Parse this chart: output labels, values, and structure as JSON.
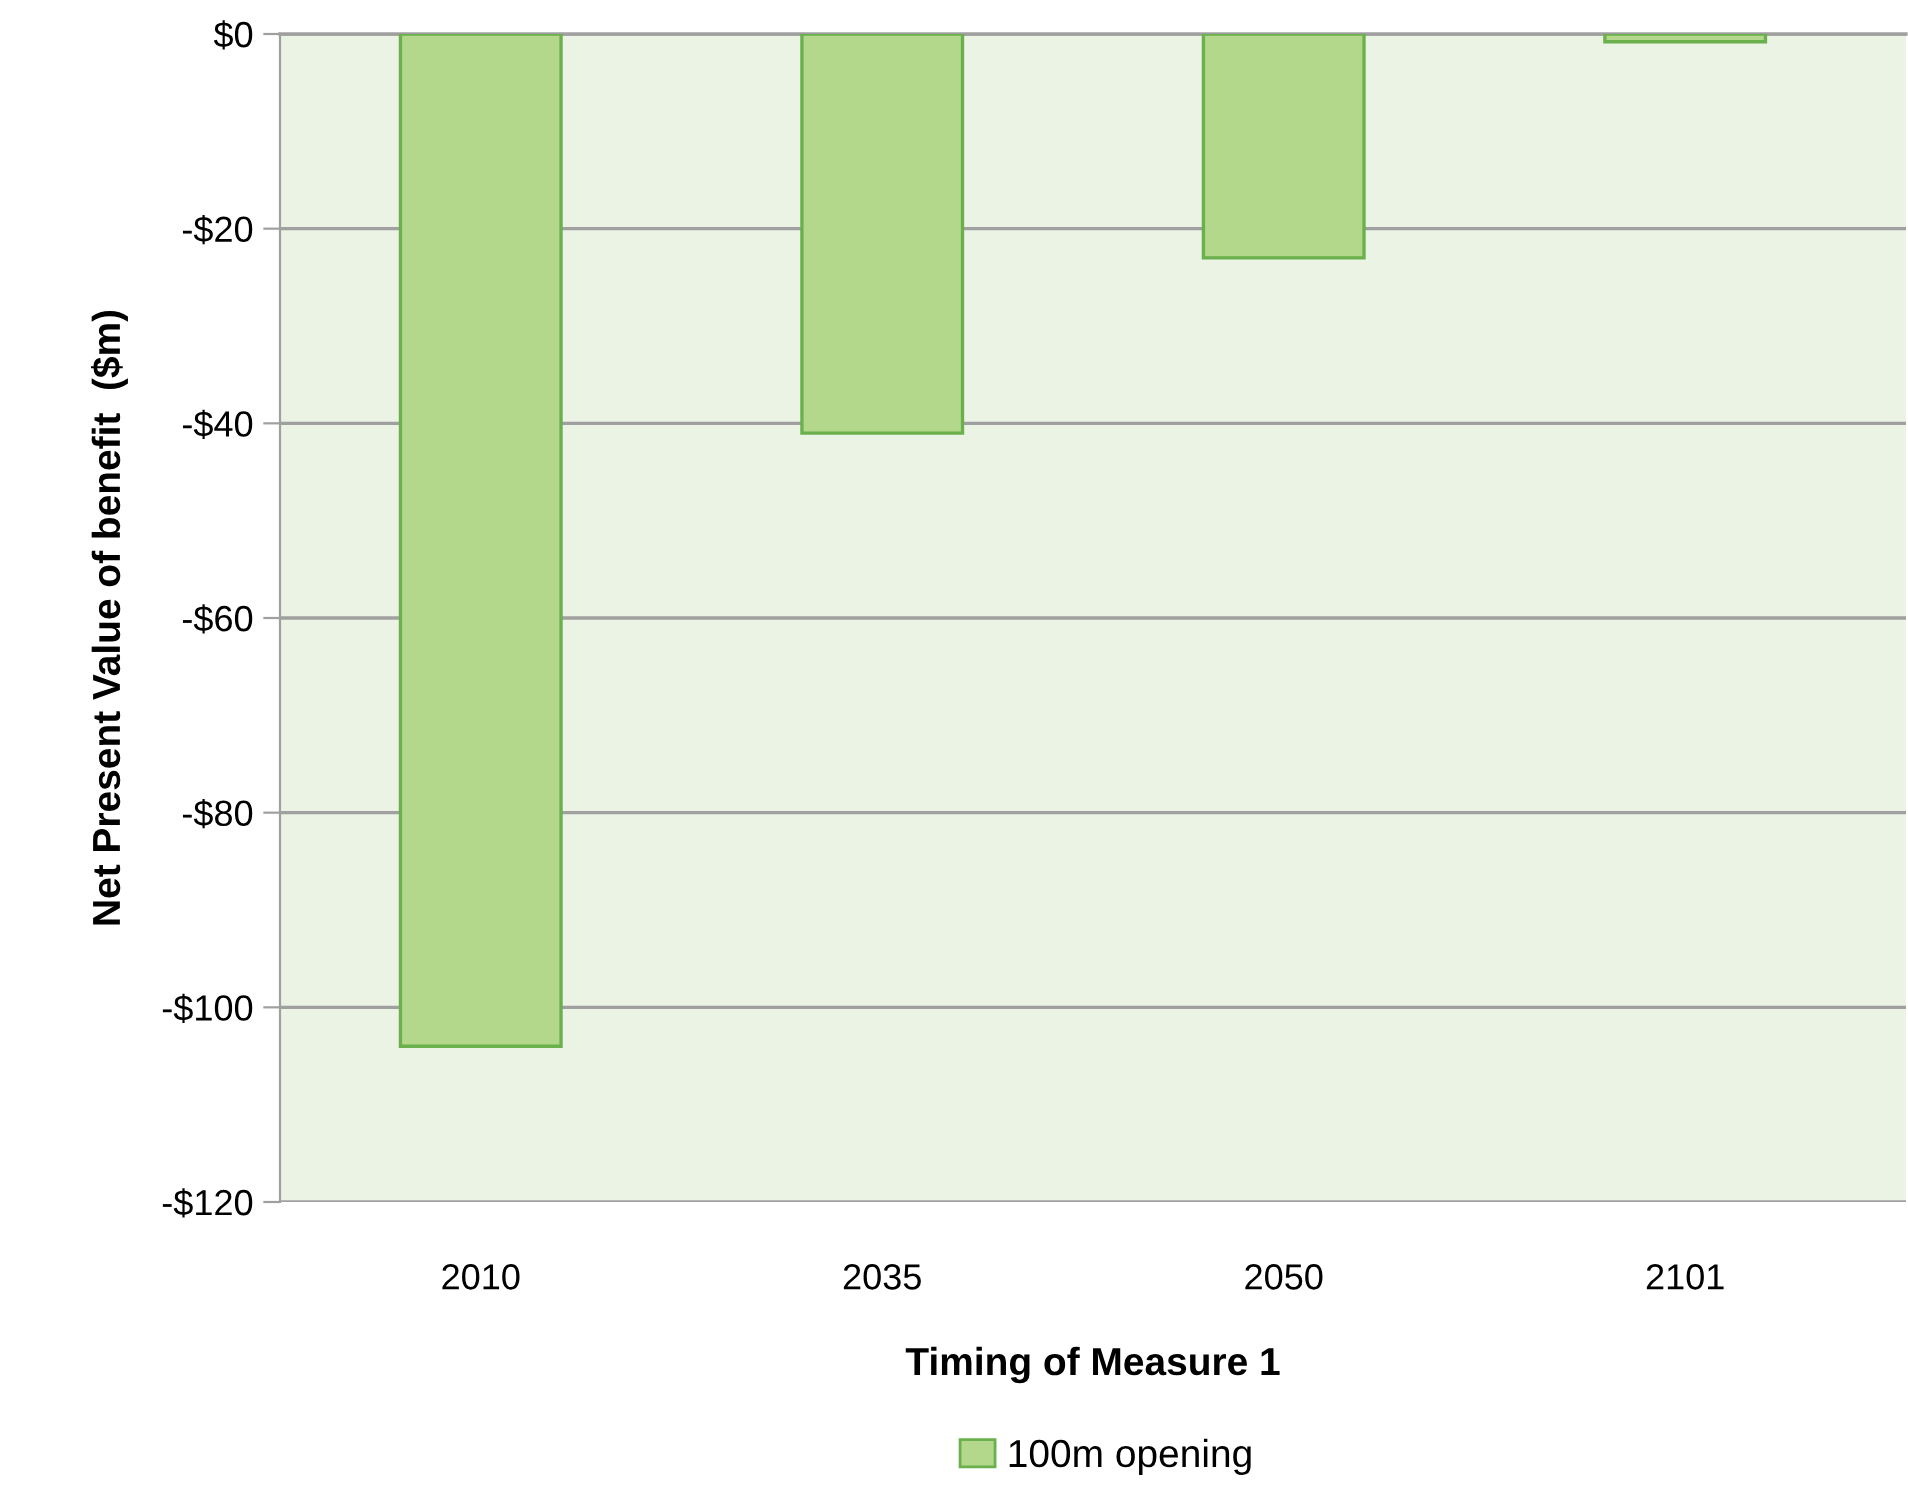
{
  "chart_data": {
    "type": "bar",
    "xlabel": "Timing of Measure 1",
    "ylabel": "Net Present Value of benefit  ($m)",
    "categories": [
      "2010",
      "2035",
      "2050",
      "2101"
    ],
    "series": [
      {
        "name": "100m opening",
        "color": "#b3d78b",
        "values": [
          -104,
          -41,
          -23,
          -0.8
        ]
      }
    ],
    "ylim": [
      -120,
      0
    ],
    "yticks": [
      {
        "value": -120,
        "label": "-$120"
      },
      {
        "value": -100,
        "label": "-$100"
      },
      {
        "value": -80,
        "label": "-$80"
      },
      {
        "value": -60,
        "label": "-$60"
      },
      {
        "value": -40,
        "label": "-$40"
      },
      {
        "value": -20,
        "label": "-$20"
      },
      {
        "value": 0,
        "label": "$0"
      }
    ],
    "grid": "y",
    "legend": "bottom"
  }
}
